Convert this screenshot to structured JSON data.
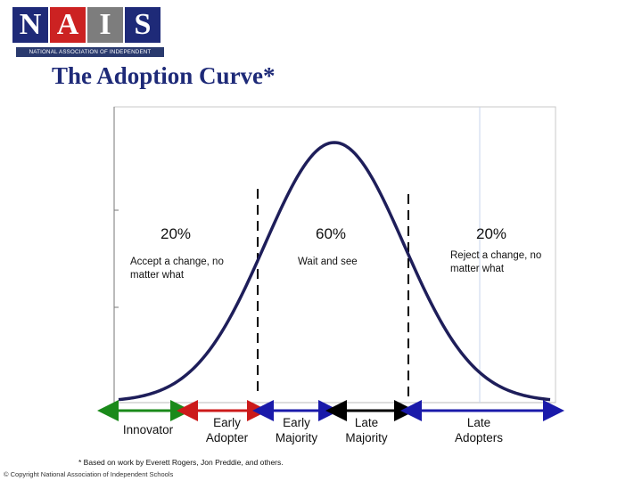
{
  "logo": {
    "letters": [
      "N",
      "A",
      "I",
      "S"
    ],
    "subtitle": "NATIONAL ASSOCIATION OF INDEPENDENT SCHOOLS",
    "colors": [
      "#1e2a78",
      "#cc2222",
      "#7d7d7d",
      "#1e2a78"
    ]
  },
  "title": "The Adoption Curve*",
  "chart_data": {
    "type": "area",
    "title": "",
    "segments": [
      {
        "percent": "20%",
        "description": "Accept a change, no matter what"
      },
      {
        "percent": "60%",
        "description": "Wait and see"
      },
      {
        "percent": "20%",
        "description": "Reject a change, no matter what"
      }
    ],
    "categories": [
      {
        "label": "Innovator",
        "color": "#1a8a1a"
      },
      {
        "label": "Early Adopter",
        "color": "#cc1a1a"
      },
      {
        "label": "Early Majority",
        "color": "#1a1aaa"
      },
      {
        "label": "Late Majority",
        "color": "#000000"
      },
      {
        "label": "Late Adopters",
        "color": "#1a1aaa"
      }
    ],
    "curve": "normal distribution (bell curve)",
    "curve_color": "#1e1e5a",
    "grid": true
  },
  "footnote": "* Based on work by Everett Rogers, Jon Preddie, and others.",
  "copyright": "© Copyright National Association of Independent Schools"
}
